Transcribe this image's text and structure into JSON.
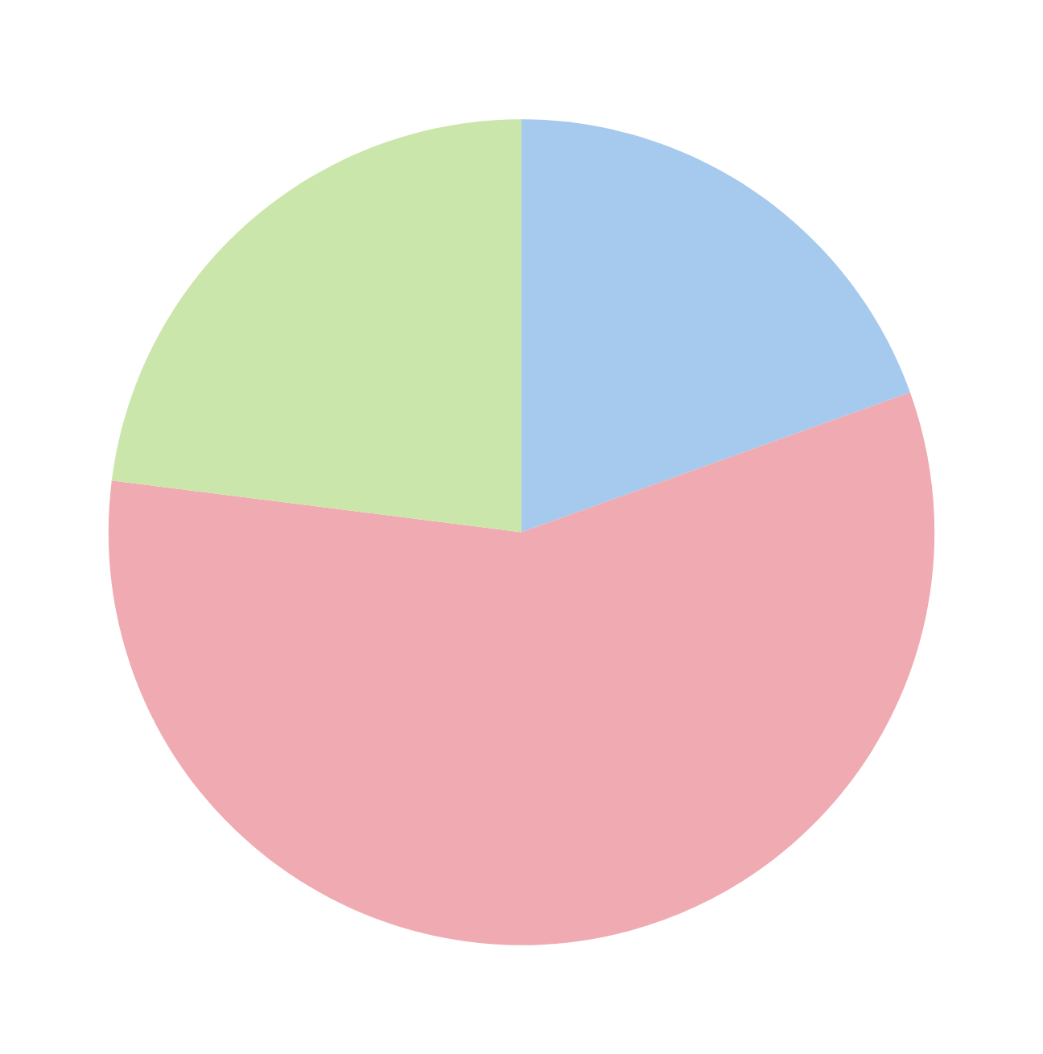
{
  "chart_data": {
    "type": "pie",
    "categories": [
      null,
      null,
      null
    ],
    "values": [
      19.5,
      57.5,
      23
    ],
    "colors": [
      "#a6c9ee",
      "#f0aab2",
      "#cbe6ab"
    ]
  }
}
